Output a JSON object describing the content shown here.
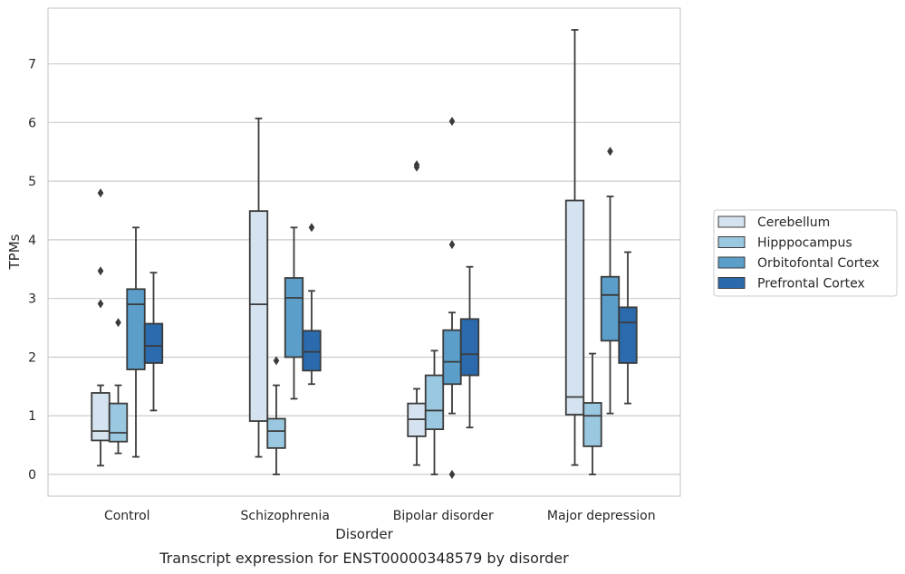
{
  "caption": "Transcript expression for ENST00000348579 by disorder",
  "chart_data": {
    "type": "boxplot",
    "xlabel": "Disorder",
    "ylabel": "TPMs",
    "ylim": [
      -0.37,
      7.95
    ],
    "yticks": [
      0,
      1,
      2,
      3,
      4,
      5,
      6,
      7
    ],
    "grid": "horizontal",
    "legend_position": "right",
    "categories": [
      "Control",
      "Schizophrenia",
      "Bipolar disorder",
      "Major depression"
    ],
    "series": [
      {
        "name": "Cerebellum",
        "color": "#d5e3f0",
        "boxes": [
          {
            "whisker_low": 0.15,
            "q1": 0.58,
            "median": 0.74,
            "q3": 1.39,
            "whisker_high": 1.52,
            "outliers": [
              2.91,
              3.47,
              4.8
            ]
          },
          {
            "whisker_low": 0.3,
            "q1": 0.91,
            "median": 2.9,
            "q3": 4.49,
            "whisker_high": 6.07,
            "outliers": []
          },
          {
            "whisker_low": 0.16,
            "q1": 0.65,
            "median": 0.94,
            "q3": 1.21,
            "whisker_high": 1.46,
            "outliers": [
              5.24,
              5.28
            ]
          },
          {
            "whisker_low": 0.16,
            "q1": 1.02,
            "median": 1.32,
            "q3": 4.67,
            "whisker_high": 7.58,
            "outliers": []
          }
        ]
      },
      {
        "name": "Hipppocampus",
        "color": "#9ac8e0",
        "boxes": [
          {
            "whisker_low": 0.36,
            "q1": 0.56,
            "median": 0.71,
            "q3": 1.21,
            "whisker_high": 1.52,
            "outliers": [
              2.59
            ]
          },
          {
            "whisker_low": 0.0,
            "q1": 0.45,
            "median": 0.74,
            "q3": 0.95,
            "whisker_high": 1.52,
            "outliers": [
              1.94
            ]
          },
          {
            "whisker_low": 0.0,
            "q1": 0.77,
            "median": 1.09,
            "q3": 1.69,
            "whisker_high": 2.11,
            "outliers": []
          },
          {
            "whisker_low": 0.0,
            "q1": 0.48,
            "median": 1.0,
            "q3": 1.22,
            "whisker_high": 2.06,
            "outliers": []
          }
        ]
      },
      {
        "name": "Orbitofontal Cortex",
        "color": "#5a9ec9",
        "boxes": [
          {
            "whisker_low": 0.3,
            "q1": 1.79,
            "median": 2.9,
            "q3": 3.16,
            "whisker_high": 4.21,
            "outliers": []
          },
          {
            "whisker_low": 1.29,
            "q1": 2.0,
            "median": 3.01,
            "q3": 3.35,
            "whisker_high": 4.21,
            "outliers": []
          },
          {
            "whisker_low": 1.04,
            "q1": 1.54,
            "median": 1.92,
            "q3": 2.46,
            "whisker_high": 2.76,
            "outliers": [
              0.0,
              3.92,
              6.02
            ]
          },
          {
            "whisker_low": 1.04,
            "q1": 2.28,
            "median": 3.06,
            "q3": 3.37,
            "whisker_high": 4.74,
            "outliers": [
              5.51
            ]
          }
        ]
      },
      {
        "name": "Prefrontal Cortex",
        "color": "#2a6aad",
        "boxes": [
          {
            "whisker_low": 1.09,
            "q1": 1.9,
            "median": 2.19,
            "q3": 2.57,
            "whisker_high": 3.44,
            "outliers": []
          },
          {
            "whisker_low": 1.54,
            "q1": 1.77,
            "median": 2.09,
            "q3": 2.45,
            "whisker_high": 3.13,
            "outliers": [
              4.21
            ]
          },
          {
            "whisker_low": 0.8,
            "q1": 1.69,
            "median": 2.05,
            "q3": 2.65,
            "whisker_high": 3.54,
            "outliers": []
          },
          {
            "whisker_low": 1.21,
            "q1": 1.9,
            "median": 2.59,
            "q3": 2.85,
            "whisker_high": 3.79,
            "outliers": []
          }
        ]
      }
    ]
  }
}
